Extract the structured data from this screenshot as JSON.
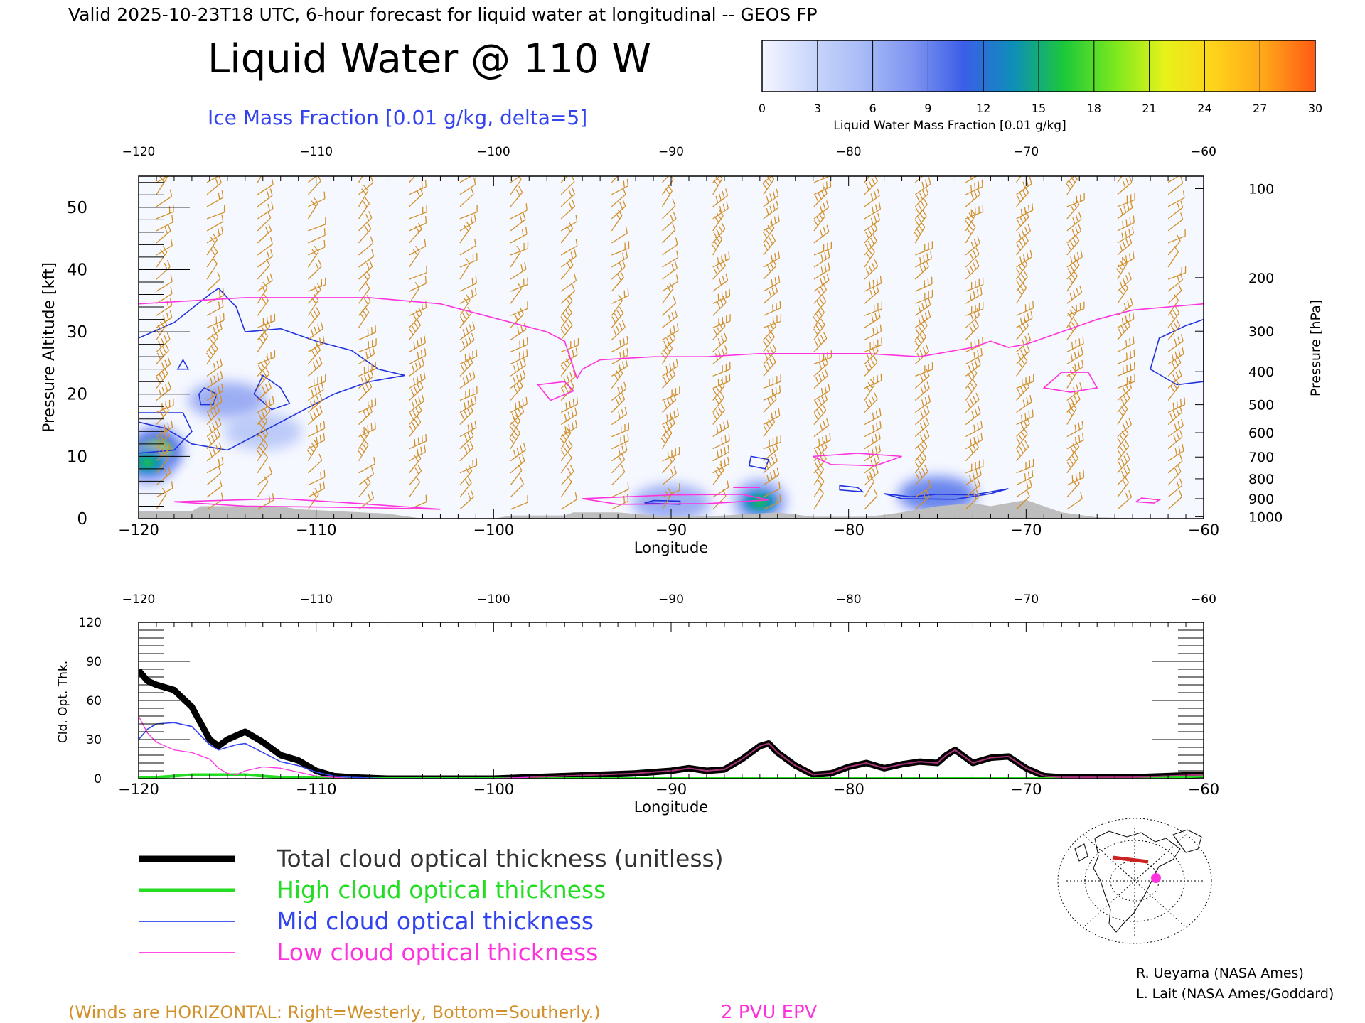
{
  "header": {
    "valid_line": "Valid 2025-10-23T18 UTC, 6-hour forecast for liquid water at longitudinal -- GEOS FP",
    "title": "Liquid Water @ 110 W",
    "subtitle": "Ice Mass Fraction [0.01 g/kg, delta=5]"
  },
  "colorbar": {
    "label": "Liquid Water Mass Fraction [0.01 g/kg]",
    "ticks": [
      "0",
      "3",
      "6",
      "9",
      "12",
      "15",
      "18",
      "21",
      "24",
      "27",
      "30"
    ],
    "colors": [
      "#f4f6ff",
      "#c9d6fb",
      "#a8bbf6",
      "#7e94f0",
      "#3b5ee8",
      "#0d8fb8",
      "#1cc83a",
      "#7ae81e",
      "#e6f21a",
      "#ffd21a",
      "#ffa51a",
      "#ff5a14"
    ]
  },
  "credits": [
    "R. Ueyama (NASA Ames)",
    "L. Lait (NASA Ames/Goddard)"
  ],
  "footer": {
    "winds_note": "(Winds are HORIZONTAL: Right=Westerly, Bottom=Southerly.)",
    "epv_label": "2 PVU EPV"
  },
  "legend": [
    {
      "label": "Total cloud optical thickness (unitless)",
      "color": "#000000"
    },
    {
      "label": "High cloud optical thickness",
      "color": "#22dd22"
    },
    {
      "label": "Mid cloud optical thickness",
      "color": "#3344ee"
    },
    {
      "label": "Low cloud optical thickness",
      "color": "#ff33dd"
    }
  ],
  "colors": {
    "wind": "#d2902a",
    "epv": "#ff33dd",
    "ice": "#2233dd",
    "terrain": "#bebebe"
  },
  "chart_data": [
    {
      "type": "heatmap",
      "title": "Liquid Water @ 110 W",
      "xlabel": "Longitude",
      "ylabel": "Pressure Altitude [kft]",
      "ylabel_right": "Pressure [hPa]",
      "xlim": [
        -120,
        -60
      ],
      "ylim": [
        0,
        55
      ],
      "x_ticks": [
        "-120",
        "-110",
        "-100",
        "-90",
        "-80",
        "-70",
        "-60"
      ],
      "y_ticks": [
        "0",
        "10",
        "20",
        "30",
        "40",
        "50"
      ],
      "pressure_ticks": [
        {
          "label": "100",
          "kft": 53
        },
        {
          "label": "200",
          "kft": 38.7
        },
        {
          "label": "300",
          "kft": 30.1
        },
        {
          "label": "400",
          "kft": 23.6
        },
        {
          "label": "500",
          "kft": 18.3
        },
        {
          "label": "600",
          "kft": 13.8
        },
        {
          "label": "700",
          "kft": 9.9
        },
        {
          "label": "800",
          "kft": 6.4
        },
        {
          "label": "900",
          "kft": 3.2
        },
        {
          "label": "1000",
          "kft": 0.3
        }
      ],
      "liquid_water_blobs": [
        {
          "lon": -119,
          "kft": 11,
          "value": 22
        },
        {
          "lon": -119.5,
          "kft": 9,
          "value": 16
        },
        {
          "lon": -85,
          "kft": 2.7,
          "value": 16
        },
        {
          "lon": -115,
          "kft": 19,
          "value": 5
        },
        {
          "lon": -113,
          "kft": 14,
          "value": 4
        },
        {
          "lon": -75,
          "kft": 3.8,
          "value": 6
        },
        {
          "lon": -90,
          "kft": 2.5,
          "value": 5
        }
      ],
      "epv_2pvu": {
        "lon": [
          -120,
          -117,
          -114,
          -111,
          -109,
          -107,
          -105,
          -103,
          -101,
          -99,
          -97,
          -96,
          -95.3,
          -95,
          -94,
          -91,
          -88,
          -85,
          -82,
          -79,
          -76,
          -73,
          -72,
          -71,
          -70,
          -68,
          -66,
          -64,
          -62,
          -60
        ],
        "kft": [
          34.5,
          35,
          35.5,
          35.5,
          35.5,
          35.5,
          35,
          34.5,
          33,
          31.5,
          30,
          28.5,
          22.5,
          24,
          25.5,
          26,
          26,
          26.5,
          26.5,
          26.5,
          26,
          27.5,
          28.5,
          27.5,
          28,
          30,
          32,
          33.5,
          34,
          34.5
        ]
      },
      "terrain": {
        "lon": [
          -120,
          -117,
          -116.5,
          -112,
          -111,
          -106,
          -104,
          -100,
          -99,
          -96,
          -95.5,
          -93,
          -91,
          -89,
          -87,
          -84,
          -82,
          -79,
          -78,
          -77,
          -75,
          -73,
          -72,
          -70,
          -68,
          -66,
          -63,
          -60
        ],
        "kft": [
          1.2,
          1.2,
          2,
          2,
          1.5,
          0.8,
          0,
          0,
          0.5,
          0.5,
          1,
          1,
          0.5,
          0.3,
          0.5,
          1,
          0.3,
          0.3,
          0.6,
          1,
          2,
          2.5,
          2,
          3,
          1,
          0.2,
          0,
          0
        ]
      }
    },
    {
      "type": "line",
      "xlabel": "Longitude",
      "ylabel": "Cld. Opt. Thk.",
      "xlim": [
        -120,
        -60
      ],
      "ylim": [
        0,
        120
      ],
      "x_ticks": [
        "-120",
        "-110",
        "-100",
        "-90",
        "-80",
        "-70",
        "-60"
      ],
      "y_ticks": [
        "0",
        "30",
        "60",
        "90",
        "120"
      ],
      "x": [
        -120,
        -119.5,
        -119,
        -118,
        -117,
        -116,
        -115.5,
        -115,
        -114.5,
        -114,
        -113,
        -112,
        -111,
        -110,
        -109,
        -108,
        -106,
        -104,
        -102,
        -100,
        -98,
        -96,
        -94,
        -92,
        -90,
        -89,
        -88,
        -87,
        -86,
        -85,
        -84.5,
        -84,
        -83,
        -82,
        -81,
        -80,
        -79,
        -78,
        -77,
        -76,
        -75,
        -74.5,
        -74,
        -73,
        -72,
        -71,
        -70,
        -69,
        -68,
        -66,
        -64,
        -62,
        -60
      ],
      "series": [
        {
          "name": "Total cloud optical thickness (unitless)",
          "values": [
            83,
            75,
            72,
            68,
            55,
            30,
            25,
            30,
            33,
            36,
            28,
            18,
            14,
            6,
            2,
            1,
            0,
            0,
            0,
            0,
            1,
            2,
            3,
            4,
            6,
            8,
            6,
            7,
            15,
            25,
            27,
            20,
            10,
            3,
            4,
            9,
            12,
            8,
            11,
            13,
            12,
            18,
            22,
            12,
            16,
            17,
            8,
            2,
            1,
            1,
            1,
            2,
            3
          ]
        },
        {
          "name": "High cloud optical thickness",
          "values": [
            1,
            1,
            1,
            2,
            3,
            3,
            3,
            3,
            3,
            3,
            2,
            1,
            1,
            1,
            0,
            0,
            0,
            0,
            0,
            0,
            0,
            0,
            0,
            0,
            0,
            0,
            0,
            0,
            0,
            0,
            0,
            0,
            0,
            0,
            0,
            0,
            0,
            0,
            0,
            0,
            0,
            0,
            0,
            0,
            0,
            0,
            0,
            0,
            0,
            0,
            0,
            1,
            2
          ]
        },
        {
          "name": "Mid cloud optical thickness",
          "values": [
            30,
            38,
            42,
            43,
            40,
            26,
            22,
            24,
            26,
            27,
            20,
            13,
            10,
            5,
            2,
            1,
            0,
            0,
            0,
            0,
            1,
            2,
            3,
            4,
            6,
            8,
            6,
            7,
            15,
            25,
            27,
            20,
            10,
            3,
            4,
            9,
            12,
            8,
            11,
            13,
            12,
            18,
            22,
            12,
            16,
            17,
            8,
            2,
            1,
            1,
            1,
            2,
            3
          ]
        },
        {
          "name": "Low cloud optical thickness",
          "values": [
            48,
            35,
            28,
            22,
            20,
            15,
            8,
            4,
            3,
            6,
            9,
            8,
            5,
            2,
            1,
            0,
            0,
            0,
            0,
            0,
            1,
            2,
            3,
            4,
            6,
            8,
            6,
            7,
            15,
            25,
            27,
            20,
            10,
            3,
            4,
            9,
            12,
            8,
            11,
            13,
            12,
            18,
            22,
            12,
            16,
            17,
            8,
            2,
            1,
            0,
            0,
            0,
            0
          ]
        }
      ]
    }
  ]
}
